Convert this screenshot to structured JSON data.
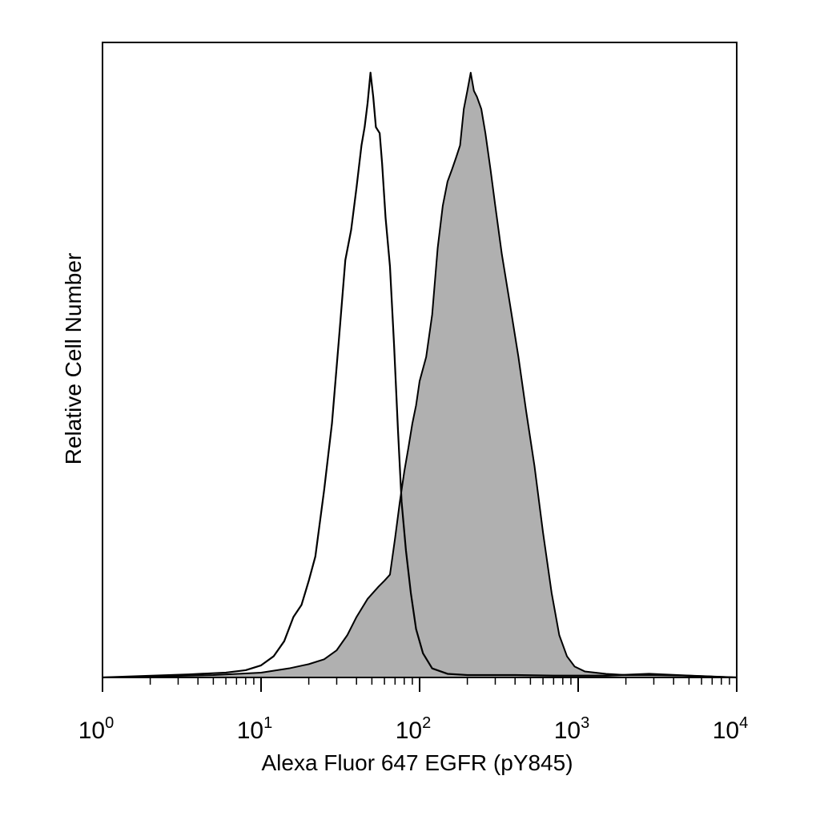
{
  "chart_data": {
    "type": "area",
    "xlabel": "Alexa Fluor 647 EGFR (pY845)",
    "ylabel": "Relative Cell Number",
    "xscale": "log",
    "xlim": [
      1,
      10000
    ],
    "ylim": [
      0,
      1.05
    ],
    "grid": false,
    "legend": "none",
    "x_ticks": [
      {
        "base": "10",
        "exp": "0",
        "value": 1
      },
      {
        "base": "10",
        "exp": "1",
        "value": 10
      },
      {
        "base": "10",
        "exp": "2",
        "value": 100
      },
      {
        "base": "10",
        "exp": "3",
        "value": 1000
      },
      {
        "base": "10",
        "exp": "4",
        "value": 10000
      }
    ],
    "series": [
      {
        "style": "outline",
        "color": "#000000",
        "points": [
          [
            1,
            0.0
          ],
          [
            3.5,
            0.005
          ],
          [
            6,
            0.008
          ],
          [
            8,
            0.012
          ],
          [
            10,
            0.02
          ],
          [
            12,
            0.035
          ],
          [
            14,
            0.06
          ],
          [
            16,
            0.1
          ],
          [
            18,
            0.12
          ],
          [
            20,
            0.16
          ],
          [
            22,
            0.2
          ],
          [
            25,
            0.31
          ],
          [
            28,
            0.42
          ],
          [
            31,
            0.56
          ],
          [
            34,
            0.69
          ],
          [
            37,
            0.74
          ],
          [
            40,
            0.81
          ],
          [
            43,
            0.88
          ],
          [
            45,
            0.91
          ],
          [
            47,
            0.95
          ],
          [
            49,
            1.0
          ],
          [
            51,
            0.96
          ],
          [
            53,
            0.91
          ],
          [
            56,
            0.9
          ],
          [
            58,
            0.85
          ],
          [
            61,
            0.76
          ],
          [
            65,
            0.68
          ],
          [
            69,
            0.55
          ],
          [
            73,
            0.41
          ],
          [
            77,
            0.29
          ],
          [
            82,
            0.21
          ],
          [
            88,
            0.14
          ],
          [
            95,
            0.08
          ],
          [
            105,
            0.04
          ],
          [
            120,
            0.015
          ],
          [
            150,
            0.006
          ],
          [
            200,
            0.004
          ],
          [
            400,
            0.004
          ],
          [
            700,
            0.003
          ],
          [
            1500,
            0.003
          ],
          [
            2800,
            0.006
          ],
          [
            5000,
            0.003
          ],
          [
            10000,
            0.0
          ]
        ]
      },
      {
        "style": "filled",
        "color": "#b0b0b0",
        "points": [
          [
            1,
            0.0
          ],
          [
            5,
            0.004
          ],
          [
            10,
            0.008
          ],
          [
            15,
            0.015
          ],
          [
            20,
            0.022
          ],
          [
            25,
            0.03
          ],
          [
            30,
            0.045
          ],
          [
            35,
            0.07
          ],
          [
            40,
            0.1
          ],
          [
            47,
            0.13
          ],
          [
            55,
            0.15
          ],
          [
            60,
            0.16
          ],
          [
            65,
            0.17
          ],
          [
            70,
            0.23
          ],
          [
            75,
            0.29
          ],
          [
            80,
            0.34
          ],
          [
            85,
            0.38
          ],
          [
            90,
            0.42
          ],
          [
            95,
            0.45
          ],
          [
            100,
            0.49
          ],
          [
            110,
            0.53
          ],
          [
            120,
            0.6
          ],
          [
            130,
            0.71
          ],
          [
            140,
            0.78
          ],
          [
            150,
            0.82
          ],
          [
            160,
            0.84
          ],
          [
            170,
            0.86
          ],
          [
            180,
            0.88
          ],
          [
            190,
            0.94
          ],
          [
            200,
            0.97
          ],
          [
            210,
            1.0
          ],
          [
            220,
            0.97
          ],
          [
            230,
            0.96
          ],
          [
            245,
            0.94
          ],
          [
            260,
            0.9
          ],
          [
            280,
            0.84
          ],
          [
            300,
            0.78
          ],
          [
            330,
            0.7
          ],
          [
            370,
            0.62
          ],
          [
            420,
            0.53
          ],
          [
            470,
            0.44
          ],
          [
            530,
            0.35
          ],
          [
            600,
            0.24
          ],
          [
            680,
            0.14
          ],
          [
            760,
            0.07
          ],
          [
            850,
            0.035
          ],
          [
            950,
            0.018
          ],
          [
            1100,
            0.01
          ],
          [
            1500,
            0.006
          ],
          [
            2000,
            0.004
          ],
          [
            3000,
            0.004
          ],
          [
            5000,
            0.003
          ],
          [
            10000,
            0.0
          ]
        ]
      }
    ]
  }
}
